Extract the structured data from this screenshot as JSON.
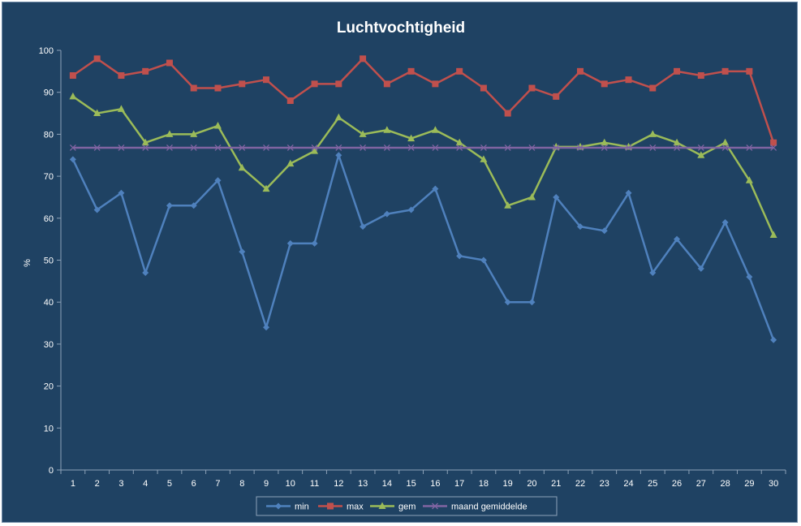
{
  "chart_data": {
    "type": "line",
    "title": "Luchtvochtigheid",
    "xlabel": "",
    "ylabel": "%",
    "ylim": [
      0,
      100
    ],
    "yticks": [
      0,
      10,
      20,
      30,
      40,
      50,
      60,
      70,
      80,
      90,
      100
    ],
    "x": [
      1,
      2,
      3,
      4,
      5,
      6,
      7,
      8,
      9,
      10,
      11,
      12,
      13,
      14,
      15,
      16,
      17,
      18,
      19,
      20,
      21,
      22,
      23,
      24,
      25,
      26,
      27,
      28,
      29,
      30
    ],
    "grid": false,
    "legend": "bottom",
    "series": [
      {
        "name": "min",
        "color": "#4f81bd",
        "marker": "diamond",
        "values": [
          74,
          62,
          66,
          47,
          63,
          63,
          69,
          52,
          34,
          54,
          54,
          75,
          58,
          61,
          62,
          67,
          51,
          50,
          40,
          40,
          65,
          58,
          57,
          66,
          47,
          55,
          48,
          59,
          46,
          31
        ]
      },
      {
        "name": "max",
        "color": "#c0504d",
        "marker": "square",
        "values": [
          94,
          98,
          94,
          95,
          97,
          91,
          91,
          92,
          93,
          88,
          92,
          92,
          98,
          92,
          95,
          92,
          95,
          91,
          85,
          91,
          89,
          95,
          92,
          93,
          91,
          95,
          94,
          95,
          95,
          78
        ]
      },
      {
        "name": "gem",
        "color": "#9bbb59",
        "marker": "triangle",
        "values": [
          89,
          85,
          86,
          78,
          80,
          80,
          82,
          72,
          67,
          73,
          76,
          84,
          80,
          81,
          79,
          81,
          78,
          74,
          63,
          65,
          77,
          77,
          78,
          77,
          80,
          78,
          75,
          78,
          69,
          56
        ]
      },
      {
        "name": "maand gemiddelde",
        "color": "#8064a2",
        "marker": "x",
        "values": [
          76.8,
          76.8,
          76.8,
          76.8,
          76.8,
          76.8,
          76.8,
          76.8,
          76.8,
          76.8,
          76.8,
          76.8,
          76.8,
          76.8,
          76.8,
          76.8,
          76.8,
          76.8,
          76.8,
          76.8,
          76.8,
          76.8,
          76.8,
          76.8,
          76.8,
          76.8,
          76.8,
          76.8,
          76.8,
          76.8
        ]
      }
    ]
  }
}
